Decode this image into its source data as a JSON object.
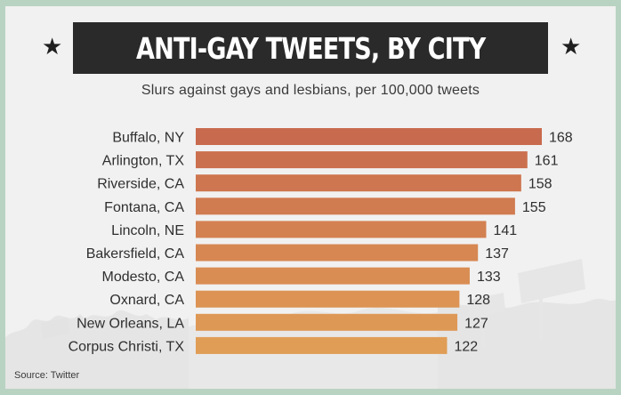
{
  "chart_data": {
    "type": "bar",
    "orientation": "horizontal",
    "title": "ANTI-GAY TWEETS, BY CITY",
    "subtitle": "Slurs against gays and lesbians, per 100,000 tweets",
    "categories": [
      "Buffalo, NY",
      "Arlington, TX",
      "Riverside, CA",
      "Fontana, CA",
      "Lincoln, NE",
      "Bakersfield, CA",
      "Modesto, CA",
      "Oxnard, CA",
      "New Orleans, LA",
      "Corpus Christi, TX"
    ],
    "values": [
      168,
      161,
      158,
      155,
      141,
      137,
      133,
      128,
      127,
      122
    ],
    "data_labels": [
      "168",
      "161",
      "158",
      "155",
      "141",
      "137",
      "133",
      "128",
      "127",
      "122"
    ],
    "bar_colors": [
      "#c86a4d",
      "#cb704e",
      "#ce764f",
      "#d07b50",
      "#d38151",
      "#d68752",
      "#d98d53",
      "#dc9354",
      "#de9855",
      "#e09d56"
    ],
    "xlim": [
      0,
      168
    ],
    "grid": false,
    "legend": "none"
  },
  "source": "Source: Twitter",
  "colors": {
    "frame": "#b9d3c2",
    "panel": "#f1f1f1",
    "title_bar": "#2a2a2a",
    "title_text": "#ffffff",
    "label_text": "#2f2f2f"
  },
  "icons": {
    "left": "star-icon",
    "right": "star-icon"
  }
}
